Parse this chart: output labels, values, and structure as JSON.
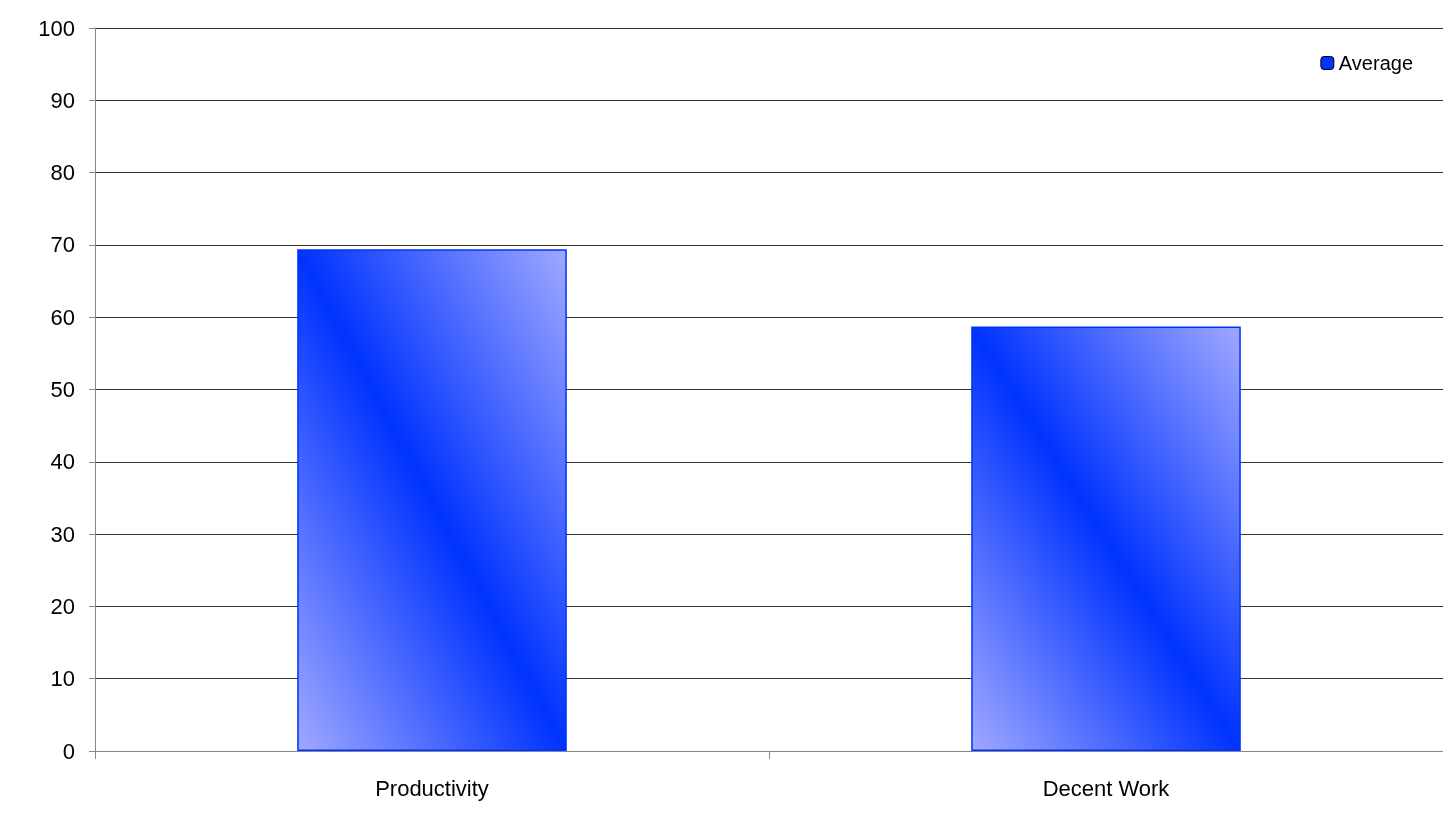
{
  "chart_data": {
    "type": "bar",
    "categories": [
      "Productivity",
      "Decent Work"
    ],
    "series": [
      {
        "name": "Average",
        "color": "#0033ff",
        "values": [
          69.4,
          58.7
        ]
      }
    ],
    "ylim": [
      0,
      100
    ],
    "yticks": [
      0,
      10,
      20,
      30,
      40,
      50,
      60,
      70,
      80,
      90,
      100
    ],
    "grid": "y",
    "legend": "top right"
  }
}
